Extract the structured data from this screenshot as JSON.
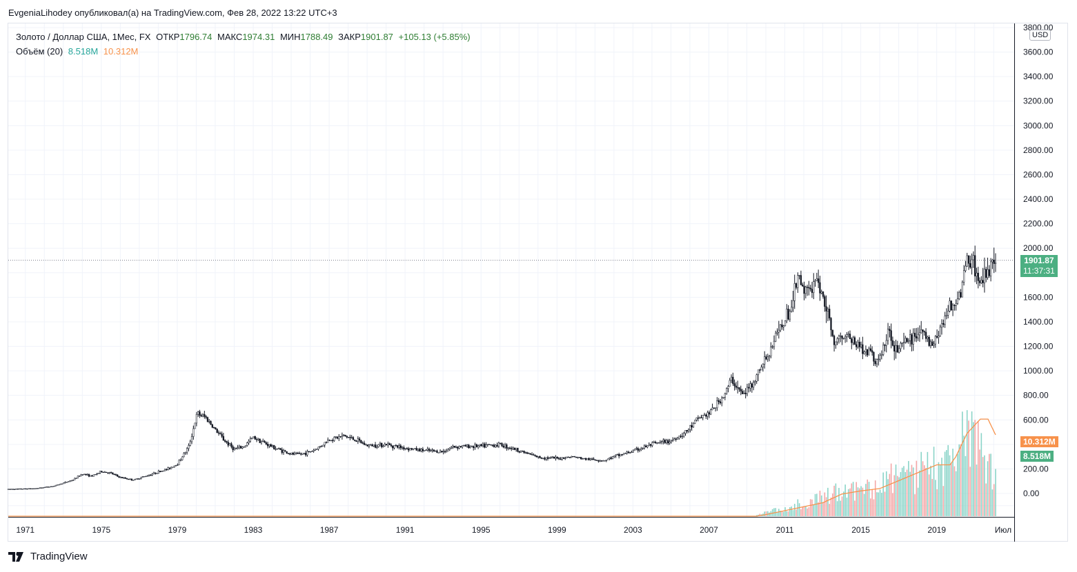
{
  "header": {
    "published_text": "EvgeniaLihodey опубликовал(а) на TradingView.com, Фев 28, 2022 13:22 UTC+3"
  },
  "legend": {
    "symbol": "Золото / Доллар США, 1Мес, FX",
    "open_label": "ОТКР",
    "open_value": "1796.74",
    "high_label": "МАКС",
    "high_value": "1974.31",
    "low_label": "МИН",
    "low_value": "1788.49",
    "close_label": "ЗАКР",
    "close_value": "1901.87",
    "change": "+105.13 (+5.85%)",
    "volume_label": "Объём (20)",
    "volume_value": "8.518M",
    "volume_ma_value": "10.312M"
  },
  "axis": {
    "currency": "USD",
    "last_price": "1901.87",
    "countdown": "11:37:31",
    "volume_ma_tag": "10.312M",
    "volume_tag": "8.518M"
  },
  "footer": {
    "brand": "TradingView"
  },
  "colors": {
    "grid": "#f0f3fa",
    "candle": "#131722",
    "price_tag": "#4caf82",
    "volume_ma": "#f7924b",
    "vol_up": "#8ad4c8",
    "vol_down": "#f4a6a6"
  },
  "chart_data": {
    "type": "candlestick",
    "title": "Золото / Доллар США, 1Мес, FX",
    "ylabel": "USD",
    "ylim": [
      -100,
      3800
    ],
    "ytick_labels": [
      "3800.00",
      "3600.00",
      "3400.00",
      "3200.00",
      "3000.00",
      "2800.00",
      "2600.00",
      "2400.00",
      "2200.00",
      "2000.00",
      "1600.00",
      "1400.00",
      "1200.00",
      "1000.00",
      "800.00",
      "600.00",
      "200.00",
      "0.00"
    ],
    "ytick_values": [
      3800,
      3600,
      3400,
      3200,
      3000,
      2800,
      2600,
      2400,
      2200,
      2000,
      1600,
      1400,
      1200,
      1000,
      800,
      600,
      200,
      0
    ],
    "xtick_labels": [
      "1971",
      "1975",
      "1979",
      "1983",
      "1987",
      "1991",
      "1995",
      "1999",
      "2003",
      "2007",
      "2011",
      "2015",
      "2019",
      "Июл"
    ],
    "xtick_years": [
      1971,
      1975,
      1979,
      1983,
      1987,
      1991,
      1995,
      1999,
      2003,
      2007,
      2011,
      2015,
      2019,
      2022.5
    ],
    "xlim": [
      1970.1,
      2022.9
    ],
    "price_anchors": [
      [
        1970.1,
        35
      ],
      [
        1971.5,
        40
      ],
      [
        1972.5,
        60
      ],
      [
        1973.5,
        110
      ],
      [
        1974.0,
        160
      ],
      [
        1974.5,
        140
      ],
      [
        1975.0,
        180
      ],
      [
        1975.5,
        165
      ],
      [
        1976.0,
        130
      ],
      [
        1976.7,
        110
      ],
      [
        1977.5,
        150
      ],
      [
        1978.5,
        200
      ],
      [
        1979.0,
        240
      ],
      [
        1979.6,
        380
      ],
      [
        1980.05,
        650
      ],
      [
        1980.5,
        620
      ],
      [
        1981.0,
        520
      ],
      [
        1981.5,
        430
      ],
      [
        1982.0,
        360
      ],
      [
        1982.5,
        380
      ],
      [
        1983.0,
        460
      ],
      [
        1983.5,
        420
      ],
      [
        1984.0,
        380
      ],
      [
        1985.0,
        320
      ],
      [
        1985.5,
        320
      ],
      [
        1986.0,
        340
      ],
      [
        1986.5,
        380
      ],
      [
        1987.0,
        440
      ],
      [
        1987.8,
        470
      ],
      [
        1988.5,
        430
      ],
      [
        1989.0,
        390
      ],
      [
        1990.0,
        400
      ],
      [
        1991.0,
        370
      ],
      [
        1992.0,
        350
      ],
      [
        1993.0,
        340
      ],
      [
        1993.5,
        380
      ],
      [
        1994.0,
        385
      ],
      [
        1995.0,
        385
      ],
      [
        1996.0,
        400
      ],
      [
        1997.0,
        350
      ],
      [
        1998.0,
        295
      ],
      [
        1999.0,
        285
      ],
      [
        1999.8,
        300
      ],
      [
        2000.5,
        280
      ],
      [
        2001.5,
        270
      ],
      [
        2002.0,
        300
      ],
      [
        2003.0,
        345
      ],
      [
        2004.0,
        400
      ],
      [
        2005.0,
        430
      ],
      [
        2005.8,
        500
      ],
      [
        2006.5,
        620
      ],
      [
        2007.0,
        650
      ],
      [
        2007.8,
        800
      ],
      [
        2008.2,
        930
      ],
      [
        2008.8,
        800
      ],
      [
        2009.5,
        950
      ],
      [
        2010.0,
        1100
      ],
      [
        2010.8,
        1350
      ],
      [
        2011.3,
        1500
      ],
      [
        2011.7,
        1780
      ],
      [
        2012.0,
        1650
      ],
      [
        2012.8,
        1700
      ],
      [
        2013.3,
        1450
      ],
      [
        2013.6,
        1250
      ],
      [
        2014.2,
        1300
      ],
      [
        2014.9,
        1200
      ],
      [
        2015.5,
        1150
      ],
      [
        2015.9,
        1070
      ],
      [
        2016.5,
        1320
      ],
      [
        2016.9,
        1170
      ],
      [
        2017.5,
        1250
      ],
      [
        2018.2,
        1330
      ],
      [
        2018.7,
        1200
      ],
      [
        2019.0,
        1300
      ],
      [
        2019.6,
        1500
      ],
      [
        2020.1,
        1580
      ],
      [
        2020.5,
        1800
      ],
      [
        2020.6,
        1950
      ],
      [
        2021.0,
        1850
      ],
      [
        2021.3,
        1730
      ],
      [
        2021.7,
        1780
      ],
      [
        2022.1,
        1900
      ]
    ],
    "volume_axis": {
      "scale_max_m": 15
    },
    "volume_ma_anchors": [
      [
        1970.1,
        0
      ],
      [
        2009.5,
        0
      ],
      [
        2010.0,
        0.2
      ],
      [
        2011.0,
        0.7
      ],
      [
        2012.0,
        1.2
      ],
      [
        2013.0,
        1.7
      ],
      [
        2014.0,
        2.8
      ],
      [
        2015.0,
        3.2
      ],
      [
        2016.0,
        3.5
      ],
      [
        2017.0,
        4.5
      ],
      [
        2018.0,
        5.5
      ],
      [
        2019.0,
        6.5
      ],
      [
        2019.7,
        6.5
      ],
      [
        2020.0,
        7.5
      ],
      [
        2020.6,
        10.5
      ],
      [
        2021.3,
        12.3
      ],
      [
        2021.7,
        12.3
      ],
      [
        2022.1,
        10.3
      ]
    ],
    "volume_max_anchors": [
      [
        2009.5,
        0.3
      ],
      [
        2011.0,
        1.5
      ],
      [
        2013.0,
        3.5
      ],
      [
        2015.0,
        5.5
      ],
      [
        2017.0,
        7.0
      ],
      [
        2019.0,
        9.0
      ],
      [
        2020.5,
        16.5
      ],
      [
        2021.5,
        12.5
      ],
      [
        2022.1,
        8.5
      ]
    ],
    "last_close": 1901.87,
    "last_volume_m": 8.518,
    "volume_ma_m": 10.312
  }
}
